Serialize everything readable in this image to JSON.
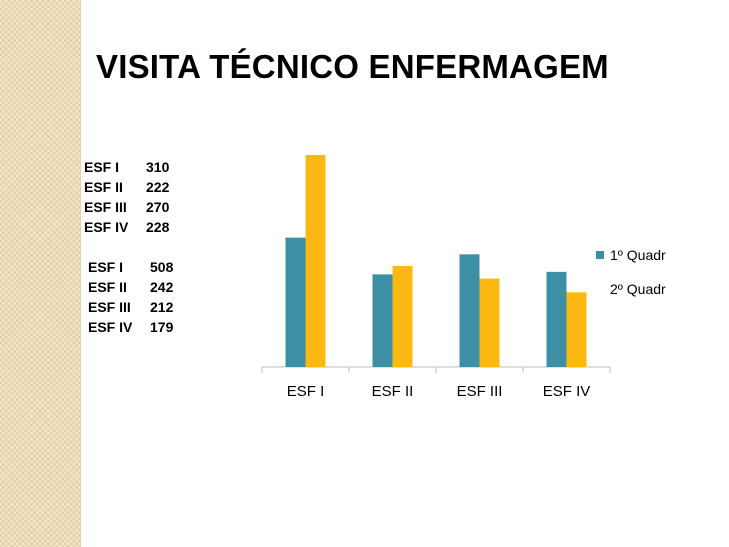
{
  "title": "VISITA TÉCNICO ENFERMAGEM",
  "stats_block_1": [
    {
      "label": "ESF I",
      "value": "310"
    },
    {
      "label": "ESF II",
      "value": "222"
    },
    {
      "label": "ESF III",
      "value": "270"
    },
    {
      "label": "ESF IV",
      "value": "228"
    }
  ],
  "stats_block_2": [
    {
      "label": "ESF I",
      "value": "508"
    },
    {
      "label": "ESF II",
      "value": "242"
    },
    {
      "label": "ESF III",
      "value": "212"
    },
    {
      "label": "ESF IV",
      "value": "179"
    }
  ],
  "colors": {
    "series1": "#3d8fa6",
    "series2": "#fdb813",
    "background_strip": "#f3e4c6"
  },
  "chart_data": {
    "type": "bar",
    "categories": [
      "ESF I",
      "ESF II",
      "ESF III",
      "ESF IV"
    ],
    "series": [
      {
        "name": "1º Quadr",
        "values": [
          310,
          222,
          270,
          228
        ]
      },
      {
        "name": "2º Quadr",
        "values": [
          508,
          242,
          212,
          179
        ]
      }
    ],
    "ylim": [
      0,
      520
    ],
    "grid": false,
    "legend_position": "right"
  }
}
